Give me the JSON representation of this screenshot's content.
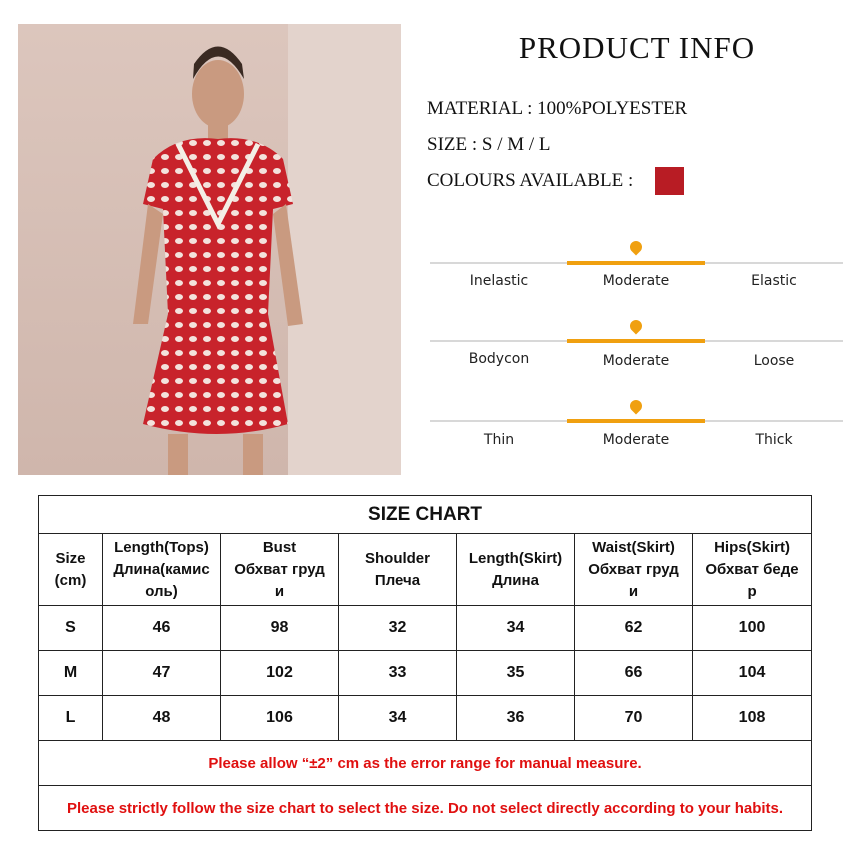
{
  "header": {
    "title": "PRODUCT INFO"
  },
  "info": {
    "material": "MATERIAL : 100%POLYESTER",
    "size": "SIZE : S / M / L",
    "colours": "COLOURS AVAILABLE :",
    "swatch_color": "#b81c24"
  },
  "accent_color": "#f0a010",
  "scales": [
    {
      "left": "Inelastic",
      "middle": "Moderate",
      "right": "Elastic",
      "selected": "Moderate"
    },
    {
      "left": "Bodycon",
      "middle": "Moderate",
      "right": "Loose",
      "selected": "Moderate"
    },
    {
      "left": "Thin",
      "middle": "Moderate",
      "right": "Thick",
      "selected": "Moderate"
    }
  ],
  "size_chart": {
    "title": "SIZE CHART",
    "headers": [
      [
        "Size",
        "(cm)"
      ],
      [
        "Length(Tops)",
        "Длина(камис",
        "оль)"
      ],
      [
        "Bust",
        "Обхват груд",
        "и"
      ],
      [
        "Shoulder",
        "Плеча"
      ],
      [
        "Length(Skirt)",
        "Длина"
      ],
      [
        "Waist(Skirt)",
        "Обхват груд",
        "и"
      ],
      [
        "Hips(Skirt)",
        "Обхват беде",
        "р"
      ]
    ],
    "rows": [
      [
        "S",
        "46",
        "98",
        "32",
        "34",
        "62",
        "100"
      ],
      [
        "M",
        "47",
        "102",
        "33",
        "35",
        "66",
        "104"
      ],
      [
        "L",
        "48",
        "106",
        "34",
        "36",
        "70",
        "108"
      ]
    ],
    "note1": "Please allow “±2” cm as the error range for manual measure.",
    "note2": "Please strictly follow the size chart  to select the size. Do not select directly according to your habits."
  }
}
